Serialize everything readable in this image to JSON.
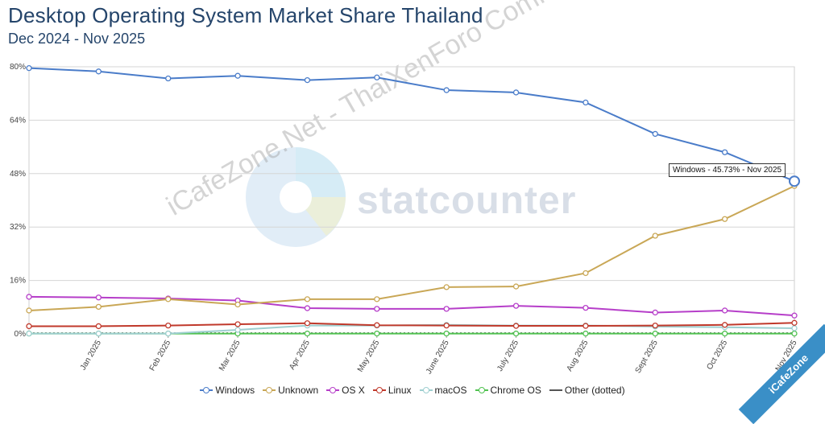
{
  "header": {
    "title": "Desktop Operating System Market Share Thailand",
    "subtitle": "Dec 2024 - Nov 2025"
  },
  "watermark": {
    "logo": "statcounter",
    "text": "iCafeZone.Net - ThaiXenForo Community",
    "badge": "iCafeZone"
  },
  "tooltip": {
    "text": "Windows - 45.73% - Nov 2025"
  },
  "chart_data": {
    "type": "line",
    "title": "Desktop Operating System Market Share Thailand",
    "subtitle": "Dec 2024 - Nov 2025",
    "categories": [
      "Dec 2024",
      "Jan 2025",
      "Feb 2025",
      "Mar 2025",
      "Apr 2025",
      "May 2025",
      "June 2025",
      "July 2025",
      "Aug 2025",
      "Sept 2025",
      "Oct 2025",
      "Nov 2025"
    ],
    "x_tick_labels": [
      "Jan 2025",
      "Feb 2025",
      "Mar 2025",
      "Apr 2025",
      "May 2025",
      "June 2025",
      "July 2025",
      "Aug 2025",
      "Sept 2025",
      "Oct 2025",
      "Nov 2025"
    ],
    "y_tick_labels": [
      "0%",
      "16%",
      "32%",
      "48%",
      "64%",
      "80%"
    ],
    "y_ticks": [
      0,
      16,
      32,
      48,
      64,
      80
    ],
    "ylim": [
      0,
      80
    ],
    "grid": true,
    "legend_position": "bottom",
    "series": [
      {
        "name": "Windows",
        "color": "#4a7cc9",
        "values": [
          79.6,
          78.6,
          76.5,
          77.3,
          76.0,
          76.8,
          73.0,
          72.3,
          69.3,
          59.9,
          54.4,
          45.73
        ]
      },
      {
        "name": "Unknown",
        "color": "#c9a756",
        "values": [
          7.0,
          8.1,
          10.4,
          8.8,
          10.4,
          10.4,
          14.0,
          14.2,
          18.2,
          29.4,
          34.4,
          44.3
        ]
      },
      {
        "name": "OS X",
        "color": "#b63ec9",
        "values": [
          11.1,
          10.9,
          10.6,
          10.0,
          7.7,
          7.5,
          7.5,
          8.4,
          7.8,
          6.4,
          7.0,
          5.5
        ]
      },
      {
        "name": "Linux",
        "color": "#c0392b",
        "values": [
          2.3,
          2.3,
          2.5,
          2.9,
          3.2,
          2.6,
          2.5,
          2.4,
          2.4,
          2.5,
          2.7,
          3.3
        ]
      },
      {
        "name": "macOS",
        "color": "#9ecfd0",
        "values": [
          0.1,
          0.1,
          0.1,
          1.2,
          2.5,
          2.5,
          2.7,
          2.5,
          2.5,
          2.2,
          2.0,
          1.7
        ]
      },
      {
        "name": "Chrome OS",
        "color": "#4fc24f",
        "values": [
          0.1,
          0.1,
          0.1,
          0.1,
          0.1,
          0.1,
          0.1,
          0.1,
          0.1,
          0.1,
          0.1,
          0.1
        ]
      },
      {
        "name": "Other (dotted)",
        "color": "#555555",
        "dotted": true,
        "values": [
          0.2,
          0.2,
          0.2,
          0.2,
          0.2,
          0.2,
          0.2,
          0.2,
          0.2,
          0.2,
          0.2,
          0.2
        ]
      }
    ]
  }
}
